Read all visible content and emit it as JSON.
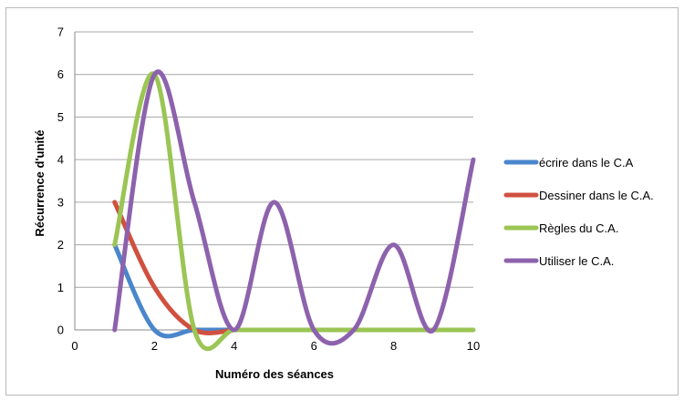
{
  "chart_data": {
    "type": "line",
    "title": "",
    "xlabel": "Numéro des séances",
    "ylabel": "Récurrence d'unité",
    "xlim": [
      0,
      10
    ],
    "ylim": [
      0,
      7
    ],
    "xticks": [
      0,
      2,
      4,
      6,
      8,
      10
    ],
    "yticks": [
      0,
      1,
      2,
      3,
      4,
      5,
      6,
      7
    ],
    "grid": "horizontal",
    "legend_position": "right",
    "smooth": true,
    "series": [
      {
        "name": "écrire dans le C.A",
        "color": "#4a86cc",
        "points": [
          [
            1,
            2
          ],
          [
            2,
            0
          ],
          [
            3,
            0
          ],
          [
            4,
            0
          ]
        ]
      },
      {
        "name": "Dessiner dans le C.A.",
        "color": "#d0503f",
        "points": [
          [
            1,
            3
          ],
          [
            2,
            1
          ],
          [
            3,
            0
          ],
          [
            4,
            0
          ]
        ]
      },
      {
        "name": "Règles du C.A.",
        "color": "#9bc554",
        "points": [
          [
            1,
            2
          ],
          [
            2,
            6
          ],
          [
            3,
            0
          ],
          [
            4,
            0
          ],
          [
            5,
            0
          ],
          [
            6,
            0
          ],
          [
            7,
            0
          ],
          [
            8,
            0
          ],
          [
            9,
            0
          ],
          [
            10,
            0
          ]
        ]
      },
      {
        "name": "Utiliser le C.A.",
        "color": "#8d62ad",
        "points": [
          [
            1,
            0
          ],
          [
            2,
            6
          ],
          [
            3,
            3
          ],
          [
            4,
            0
          ],
          [
            5,
            3
          ],
          [
            6,
            0
          ],
          [
            7,
            0
          ],
          [
            8,
            2
          ],
          [
            9,
            0
          ],
          [
            10,
            4
          ]
        ]
      }
    ]
  }
}
